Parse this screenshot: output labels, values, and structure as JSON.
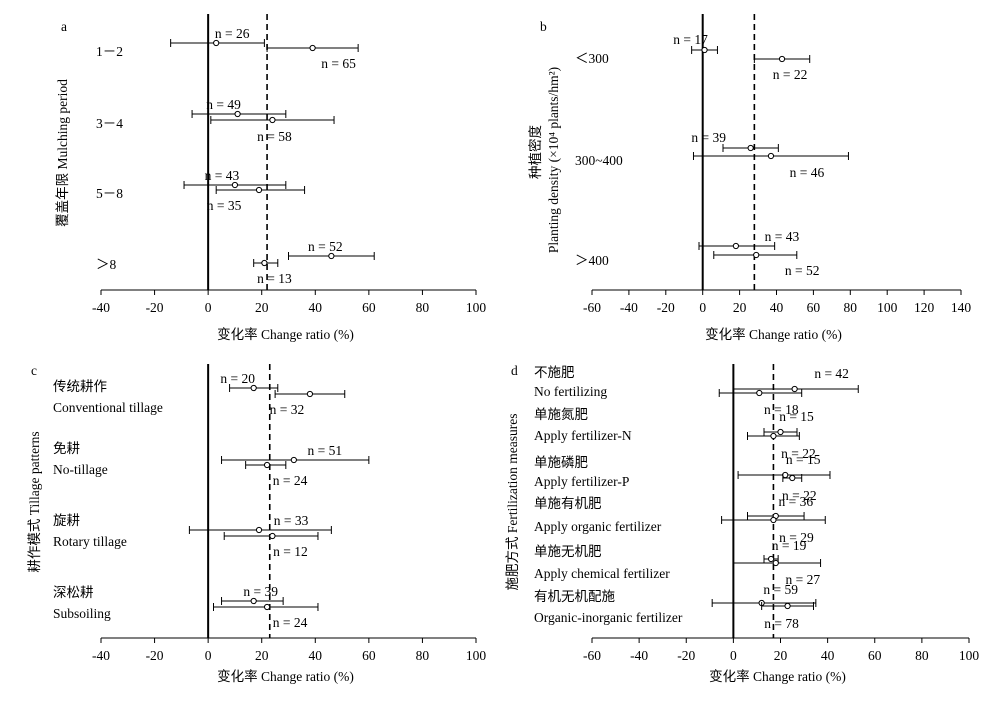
{
  "chart_data": [
    {
      "type": "forest",
      "panel_label": "a",
      "ylabel": "覆盖年限 Mulching period",
      "xlabel": "变化率 Change ratio (%)",
      "xlim": [
        -40,
        100
      ],
      "xticks": [
        -40,
        -20,
        0,
        20,
        40,
        60,
        80,
        100
      ],
      "reference_line": 0,
      "mean_line": 22,
      "groups": [
        {
          "label": [
            "1－2"
          ],
          "series": [
            {
              "mean": 3,
              "low": -14,
              "high": 21,
              "n_label": "n = 26"
            },
            {
              "mean": 39,
              "low": 22,
              "high": 56,
              "n_label": "n = 65"
            }
          ]
        },
        {
          "label": [
            "3－4"
          ],
          "series": [
            {
              "mean": 11,
              "low": -6,
              "high": 29,
              "n_label": "n = 49"
            },
            {
              "mean": 24,
              "low": 1,
              "high": 47,
              "n_label": "n = 58"
            }
          ]
        },
        {
          "label": [
            "5－8"
          ],
          "series": [
            {
              "mean": 10,
              "low": -9,
              "high": 29,
              "n_label": "n = 43"
            },
            {
              "mean": 19,
              "low": 3,
              "high": 36,
              "n_label": "n = 35"
            }
          ]
        },
        {
          "label": [
            "＞8"
          ],
          "series": [
            {
              "mean": 46,
              "low": 30,
              "high": 62,
              "n_label": "n = 52"
            },
            {
              "mean": 21,
              "low": 17,
              "high": 26,
              "n_label": "n = 13"
            }
          ]
        }
      ]
    },
    {
      "type": "forest",
      "panel_label": "b",
      "ylabel": "种植密度",
      "ylabel2": "Planting density (×10⁴ plants/hm²)",
      "xlabel": "变化率 Change ratio (%)",
      "xlim": [
        -60,
        140
      ],
      "xticks": [
        -60,
        -40,
        -20,
        0,
        20,
        40,
        60,
        80,
        100,
        120,
        140
      ],
      "reference_line": 0,
      "mean_line": 28,
      "groups": [
        {
          "label": [
            "＜300"
          ],
          "series": [
            {
              "mean": 1,
              "low": -6,
              "high": 8,
              "n_label": "n = 17"
            },
            {
              "mean": 43,
              "low": 28,
              "high": 58,
              "n_label": "n = 22"
            }
          ]
        },
        {
          "label": [
            "300~400"
          ],
          "series": [
            {
              "mean": 26,
              "low": 11,
              "high": 41,
              "n_label": "n = 39"
            },
            {
              "mean": 37,
              "low": -5,
              "high": 79,
              "n_label": "n = 46"
            }
          ]
        },
        {
          "label": [
            "＞400"
          ],
          "series": [
            {
              "mean": 18,
              "low": -2,
              "high": 39,
              "n_label": "n = 43"
            },
            {
              "mean": 29,
              "low": 6,
              "high": 51,
              "n_label": "n = 52"
            }
          ]
        }
      ]
    },
    {
      "type": "forest",
      "panel_label": "c",
      "ylabel": "耕作模式 Tillage patterns",
      "xlabel": "变化率 Change ratio (%)",
      "xlim": [
        -40,
        100
      ],
      "xticks": [
        -40,
        -20,
        0,
        20,
        40,
        60,
        80,
        100
      ],
      "reference_line": 0,
      "mean_line": 23,
      "groups": [
        {
          "label": [
            "传统耕作",
            "Conventional tillage"
          ],
          "series": [
            {
              "mean": 17,
              "low": 8,
              "high": 26,
              "n_label": "n = 20"
            },
            {
              "mean": 38,
              "low": 25,
              "high": 51,
              "n_label": "n = 32"
            }
          ]
        },
        {
          "label": [
            "免耕",
            "No-tillage"
          ],
          "series": [
            {
              "mean": 32,
              "low": 5,
              "high": 60,
              "n_label": "n = 51"
            },
            {
              "mean": 22,
              "low": 14,
              "high": 29,
              "n_label": "n = 24"
            }
          ]
        },
        {
          "label": [
            "旋耕",
            "Rotary tillage"
          ],
          "series": [
            {
              "mean": 19,
              "low": -7,
              "high": 46,
              "n_label": "n = 33"
            },
            {
              "mean": 24,
              "low": 6,
              "high": 41,
              "n_label": "n = 12"
            }
          ]
        },
        {
          "label": [
            "深松耕",
            "Subsoiling"
          ],
          "series": [
            {
              "mean": 17,
              "low": 5,
              "high": 28,
              "n_label": "n = 39"
            },
            {
              "mean": 22,
              "low": 2,
              "high": 41,
              "n_label": "n = 24"
            }
          ]
        }
      ]
    },
    {
      "type": "forest",
      "panel_label": "d",
      "ylabel": "施肥方式 Fertilization measures",
      "xlabel": "变化率 Change ratio (%)",
      "xlim": [
        -60,
        100
      ],
      "xticks": [
        -60,
        -40,
        -20,
        0,
        20,
        40,
        60,
        80,
        100
      ],
      "reference_line": 0,
      "mean_line": 17,
      "groups": [
        {
          "label": [
            "不施肥",
            "No fertilizing"
          ],
          "series": [
            {
              "mean": 26,
              "low": 0,
              "high": 53,
              "n_label": "n = 42"
            },
            {
              "mean": 11,
              "low": -6,
              "high": 29,
              "n_label": "n = 18"
            }
          ]
        },
        {
          "label": [
            "单施氮肥",
            "Apply fertilizer-N"
          ],
          "series": [
            {
              "mean": 20,
              "low": 13,
              "high": 27,
              "n_label": "n = 15"
            },
            {
              "mean": 17,
              "low": 6,
              "high": 28,
              "n_label": "n = 22"
            }
          ]
        },
        {
          "label": [
            "单施磷肥",
            "Apply fertilizer-P"
          ],
          "series": [
            {
              "mean": 22,
              "low": 2,
              "high": 41,
              "n_label": "n = 15"
            },
            {
              "mean": 25,
              "low": 21,
              "high": 29,
              "n_label": "n = 22"
            }
          ]
        },
        {
          "label": [
            "单施有机肥",
            "Apply organic fertilizer"
          ],
          "series": [
            {
              "mean": 18,
              "low": 6,
              "high": 30,
              "n_label": "n = 36"
            },
            {
              "mean": 17,
              "low": -5,
              "high": 39,
              "n_label": "n = 29"
            }
          ]
        },
        {
          "label": [
            "单施无机肥",
            "Apply chemical fertilizer"
          ],
          "series": [
            {
              "mean": 16,
              "low": 13,
              "high": 19,
              "n_label": "n = 19"
            },
            {
              "mean": 18,
              "low": 0,
              "high": 37,
              "n_label": "n = 27"
            }
          ]
        },
        {
          "label": [
            "有机无机配施",
            "Organic-inorganic fertilizer"
          ],
          "series": [
            {
              "mean": 12,
              "low": -9,
              "high": 35,
              "n_label": "n = 59"
            },
            {
              "mean": 23,
              "low": 12,
              "high": 34,
              "n_label": "n = 78"
            }
          ]
        }
      ]
    }
  ]
}
